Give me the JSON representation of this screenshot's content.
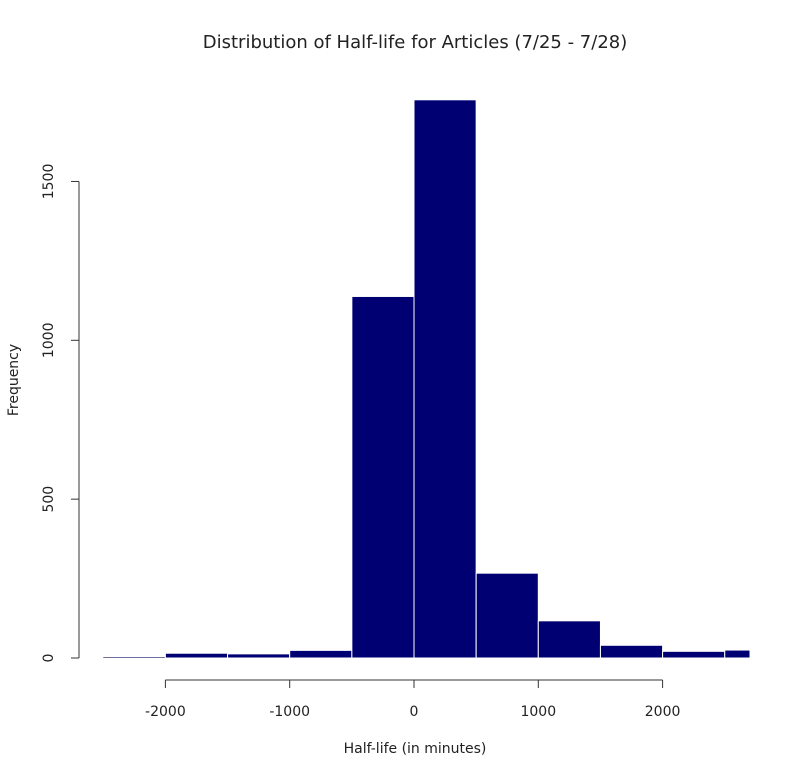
{
  "chart_data": {
    "type": "bar",
    "title": "Distribution of Half-life for Articles (7/25 - 7/28)",
    "xlabel": "Half-life (in minutes)",
    "ylabel": "Frequency",
    "bins": [
      {
        "x0": -2500,
        "x1": -2000,
        "count": 1
      },
      {
        "x0": -2000,
        "x1": -1500,
        "count": 15
      },
      {
        "x0": -1500,
        "x1": -1000,
        "count": 13
      },
      {
        "x0": -1000,
        "x1": -500,
        "count": 24
      },
      {
        "x0": -500,
        "x1": 0,
        "count": 1138
      },
      {
        "x0": 0,
        "x1": 500,
        "count": 1757
      },
      {
        "x0": 500,
        "x1": 1000,
        "count": 267
      },
      {
        "x0": 1000,
        "x1": 1500,
        "count": 117
      },
      {
        "x0": 1500,
        "x1": 2000,
        "count": 40
      },
      {
        "x0": 2000,
        "x1": 2500,
        "count": 21
      },
      {
        "x0": 2500,
        "x1": 3000,
        "count": 25
      }
    ],
    "x_ticks": [
      -2000,
      -1000,
      0,
      1000,
      2000
    ],
    "x_tick_labels": [
      "-2000",
      "-1000",
      "0",
      "1000",
      "2000"
    ],
    "y_ticks": [
      0,
      500,
      1000,
      1500
    ],
    "y_tick_labels": [
      "0",
      "500",
      "1000",
      "1500"
    ],
    "xlim": [
      -2700,
      2700
    ],
    "ylim": [
      0,
      1800
    ],
    "bar_color": "#000073",
    "bar_border_color": "#ffffff",
    "grid": false
  }
}
